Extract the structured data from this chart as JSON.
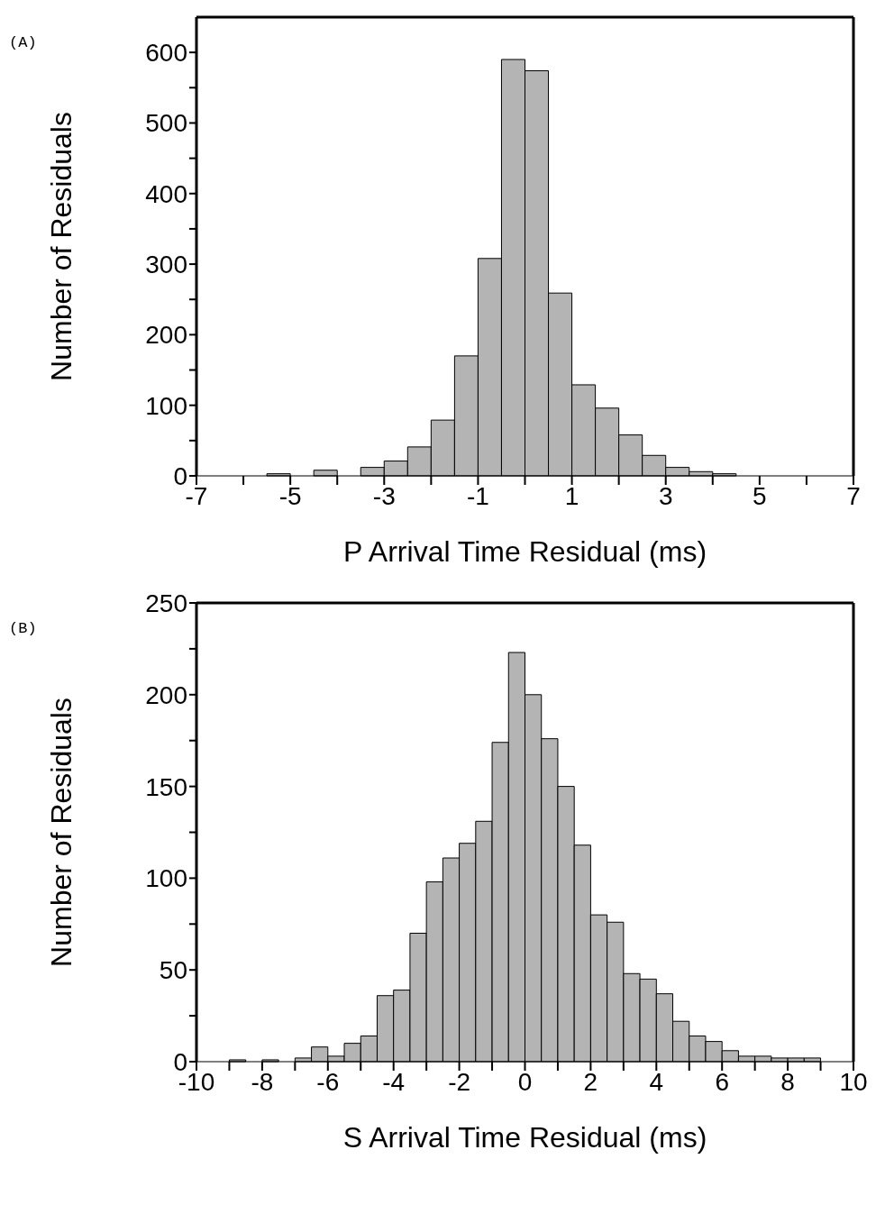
{
  "chart_data": [
    {
      "type": "histogram",
      "annotations": [
        "(A)"
      ],
      "xlabel": "P  Arrival Time Residual (ms)",
      "ylabel": "Number of Residuals",
      "color": "#b4b4b4",
      "bins": [
        -5.5,
        -5,
        -4.5,
        -4,
        -3.5,
        -3,
        -2.5,
        -2,
        -1.5,
        -1,
        -0.5,
        0,
        0.5,
        1,
        1.5,
        2,
        2.5,
        3,
        3.5,
        4,
        4.5
      ],
      "values": [
        3,
        0,
        8,
        0,
        12,
        21,
        41,
        79,
        170,
        308,
        590,
        574,
        259,
        129,
        96,
        58,
        29,
        12,
        6,
        3
      ],
      "xlim": [
        -7,
        7
      ],
      "xticks": [
        -7,
        {
          "value": -6,
          "label": null
        },
        -5,
        {
          "value": -4,
          "label": null
        },
        -3,
        {
          "value": -2,
          "label": null
        },
        -1,
        {
          "value": 0,
          "label": null
        },
        1,
        {
          "value": 2,
          "label": null
        },
        3,
        {
          "value": 4,
          "label": null
        },
        5,
        {
          "value": 6,
          "label": null
        },
        7
      ],
      "ylim": [
        0,
        650
      ],
      "yticks": [
        0,
        {
          "value": 50,
          "label": null
        },
        100,
        {
          "value": 150,
          "label": null
        },
        200,
        {
          "value": 250,
          "label": null
        },
        300,
        {
          "value": 350,
          "label": null
        },
        400,
        {
          "value": 450,
          "label": null
        },
        500,
        {
          "value": 550,
          "label": null
        },
        600
      ]
    },
    {
      "type": "histogram",
      "annotations": [
        "(B)"
      ],
      "xlabel": "S Arrival Time Residual (ms)",
      "ylabel": "Number of Residuals",
      "color": "#b4b4b4",
      "bins": [
        -9,
        -8.5,
        -8,
        -7.5,
        -7,
        -6.5,
        -6,
        -5.5,
        -5,
        -4.5,
        -4,
        -3.5,
        -3,
        -2.5,
        -2,
        -1.5,
        -1,
        -0.5,
        0,
        0.5,
        1,
        1.5,
        2,
        2.5,
        3,
        3.5,
        4,
        4.5,
        5,
        5.5,
        6,
        6.5,
        7,
        7.5,
        8,
        8.5,
        9
      ],
      "values": [
        1,
        0,
        1,
        0,
        2,
        8,
        3,
        10,
        14,
        36,
        39,
        70,
        98,
        111,
        119,
        131,
        174,
        223,
        200,
        176,
        150,
        118,
        80,
        76,
        48,
        45,
        37,
        22,
        14,
        11,
        6,
        3,
        3,
        2,
        2,
        2
      ],
      "xlim": [
        -10,
        10
      ],
      "xticks": [
        -10,
        {
          "value": -9,
          "label": null
        },
        -8,
        {
          "value": -7,
          "label": null
        },
        -6,
        {
          "value": -5,
          "label": null
        },
        -4,
        {
          "value": -3,
          "label": null
        },
        -2,
        {
          "value": -1,
          "label": null
        },
        0,
        {
          "value": 1,
          "label": null
        },
        2,
        {
          "value": 3,
          "label": null
        },
        4,
        {
          "value": 5,
          "label": null
        },
        6,
        {
          "value": 7,
          "label": null
        },
        8,
        {
          "value": 9,
          "label": null
        },
        10
      ],
      "ylim": [
        0,
        250
      ],
      "yticks": [
        0,
        {
          "value": 25,
          "label": null
        },
        50,
        {
          "value": 75,
          "label": null
        },
        100,
        {
          "value": 125,
          "label": null
        },
        150,
        {
          "value": 175,
          "label": null
        },
        200,
        {
          "value": 225,
          "label": null
        },
        250
      ]
    }
  ]
}
